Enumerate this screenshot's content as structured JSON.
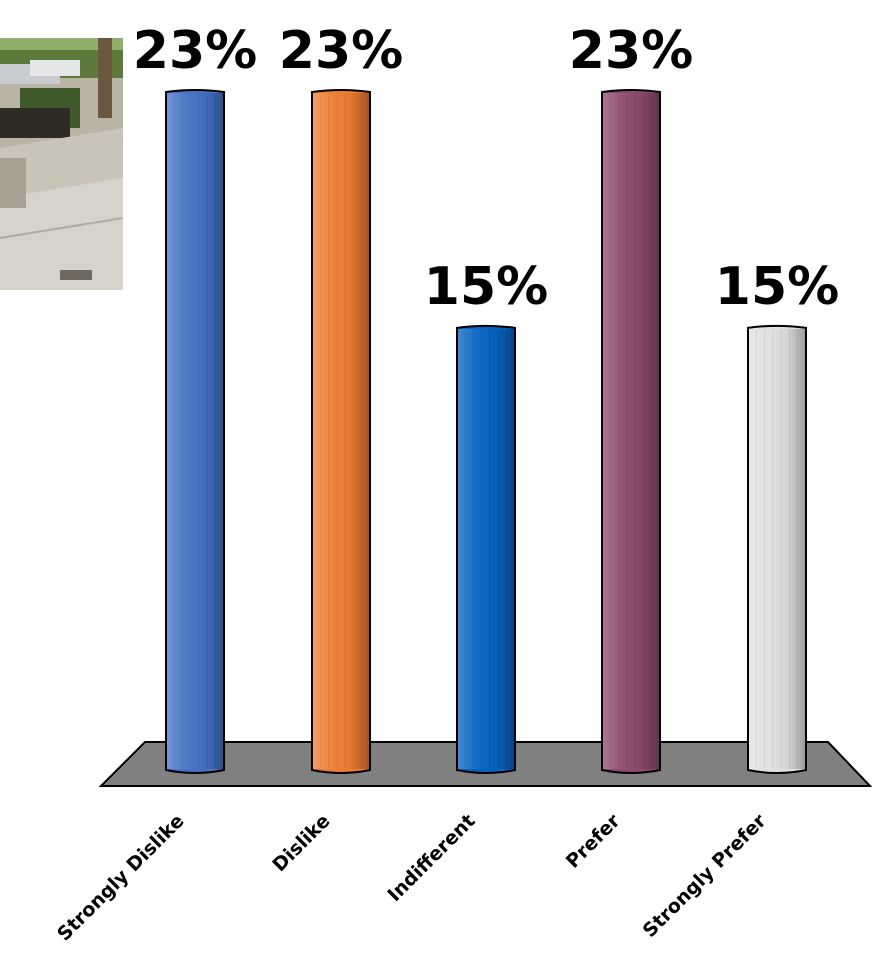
{
  "chart_data": {
    "type": "bar",
    "categories": [
      "Strongly Dislike",
      "Dislike",
      "Indifferent",
      "Prefer",
      "Strongly Prefer"
    ],
    "values": [
      23,
      23,
      15,
      23,
      15
    ],
    "value_labels": [
      "23%",
      "23%",
      "15%",
      "23%",
      "15%"
    ],
    "colors": [
      "#4472c4",
      "#ed7d31",
      "#0563c1",
      "#8c4a6f",
      "#e0e0e0"
    ],
    "ylim": [
      0,
      23
    ],
    "grid": false,
    "legend": "none",
    "title": "",
    "xlabel": "",
    "ylabel": ""
  },
  "photo": {
    "icon": "street-sidewalk-photo"
  }
}
